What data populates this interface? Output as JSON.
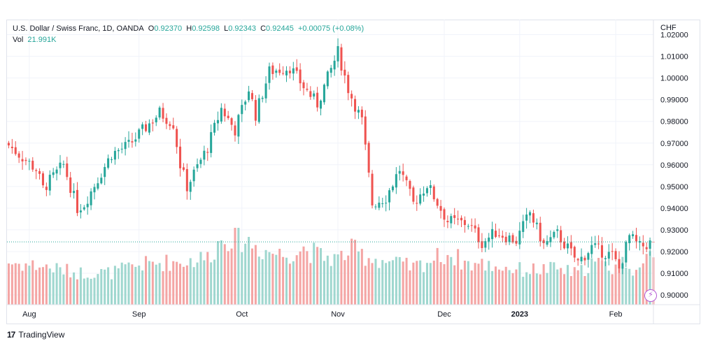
{
  "legend": {
    "symbol": "U.S. Dollar / Swiss Franc, 1D, OANDA",
    "o_label": "O",
    "o_value": "0.92370",
    "h_label": "H",
    "h_value": "0.92598",
    "l_label": "L",
    "l_value": "0.92343",
    "c_label": "C",
    "c_value": "0.92445",
    "change": "+0.00075 (+0.08%)",
    "vol_label": "Vol",
    "vol_value": "21.991K"
  },
  "currency": "CHF",
  "brand": {
    "logo": "17",
    "name": "TradingView"
  },
  "colors": {
    "up": "#26a69a",
    "down": "#ef5350",
    "up_vol": "#9fd7cf",
    "down_vol": "#f4a5a4",
    "grid": "#f0f3fa",
    "text": "#131722"
  },
  "chart_data": {
    "type": "candlestick",
    "title": "U.S. Dollar / Swiss Franc, 1D, OANDA",
    "ylim": [
      0.8955,
      1.0205
    ],
    "y_ticks": [
      "0.90000",
      "0.91000",
      "0.92000",
      "0.93000",
      "0.94000",
      "0.95000",
      "0.96000",
      "0.97000",
      "0.98000",
      "0.99000",
      "1.00000",
      "1.01000",
      "1.02000"
    ],
    "x_ticks": [
      {
        "label": "Aug",
        "index": 6
      },
      {
        "label": "Sep",
        "index": 38
      },
      {
        "label": "Oct",
        "index": 68
      },
      {
        "label": "Nov",
        "index": 96
      },
      {
        "label": "Dec",
        "index": 127
      },
      {
        "label": "2023",
        "index": 149
      },
      {
        "label": "Feb",
        "index": 177
      }
    ],
    "last_price": 0.92445,
    "candle_count": 189,
    "close_path": [
      [
        0,
        0.969
      ],
      [
        8,
        0.958
      ],
      [
        10,
        0.949
      ],
      [
        16,
        0.96
      ],
      [
        20,
        0.94
      ],
      [
        22,
        0.942
      ],
      [
        30,
        0.965
      ],
      [
        35,
        0.969
      ],
      [
        44,
        0.984
      ],
      [
        48,
        0.979
      ],
      [
        50,
        0.96
      ],
      [
        52,
        0.95
      ],
      [
        58,
        0.968
      ],
      [
        62,
        0.986
      ],
      [
        66,
        0.976
      ],
      [
        70,
        0.995
      ],
      [
        72,
        0.983
      ],
      [
        76,
        1.003
      ],
      [
        82,
        1.005
      ],
      [
        86,
        0.996
      ],
      [
        90,
        0.988
      ],
      [
        92,
        0.996
      ],
      [
        96,
        1.012
      ],
      [
        99,
        0.995
      ],
      [
        103,
        0.98
      ],
      [
        106,
        0.942
      ],
      [
        110,
        0.945
      ],
      [
        114,
        0.958
      ],
      [
        118,
        0.942
      ],
      [
        122,
        0.951
      ],
      [
        128,
        0.934
      ],
      [
        134,
        0.933
      ],
      [
        138,
        0.924
      ],
      [
        142,
        0.929
      ],
      [
        148,
        0.925
      ],
      [
        152,
        0.938
      ],
      [
        156,
        0.923
      ],
      [
        160,
        0.928
      ],
      [
        166,
        0.915
      ],
      [
        170,
        0.922
      ],
      [
        176,
        0.918
      ],
      [
        178,
        0.912
      ],
      [
        181,
        0.927
      ],
      [
        184,
        0.922
      ],
      [
        188,
        0.92445
      ]
    ],
    "volume_path": [
      [
        0,
        16.5
      ],
      [
        10,
        15.0
      ],
      [
        20,
        12.5
      ],
      [
        30,
        12.5
      ],
      [
        38,
        15.5
      ],
      [
        45,
        16.5
      ],
      [
        52,
        17.0
      ],
      [
        58,
        18.5
      ],
      [
        63,
        27.0
      ],
      [
        68,
        26.0
      ],
      [
        74,
        21.5
      ],
      [
        80,
        19.5
      ],
      [
        86,
        22.0
      ],
      [
        91,
        19.0
      ],
      [
        96,
        18.0
      ],
      [
        100,
        21.5
      ],
      [
        104,
        19.0
      ],
      [
        110,
        17.0
      ],
      [
        118,
        14.5
      ],
      [
        124,
        18.0
      ],
      [
        128,
        20.0
      ],
      [
        134,
        16.0
      ],
      [
        140,
        15.5
      ],
      [
        150,
        13.5
      ],
      [
        160,
        14.0
      ],
      [
        166,
        12.0
      ],
      [
        170,
        16.5
      ],
      [
        176,
        14.5
      ],
      [
        180,
        17.0
      ],
      [
        184,
        12.0
      ],
      [
        188,
        22.0
      ]
    ],
    "volume_axis_max_k": 30
  }
}
